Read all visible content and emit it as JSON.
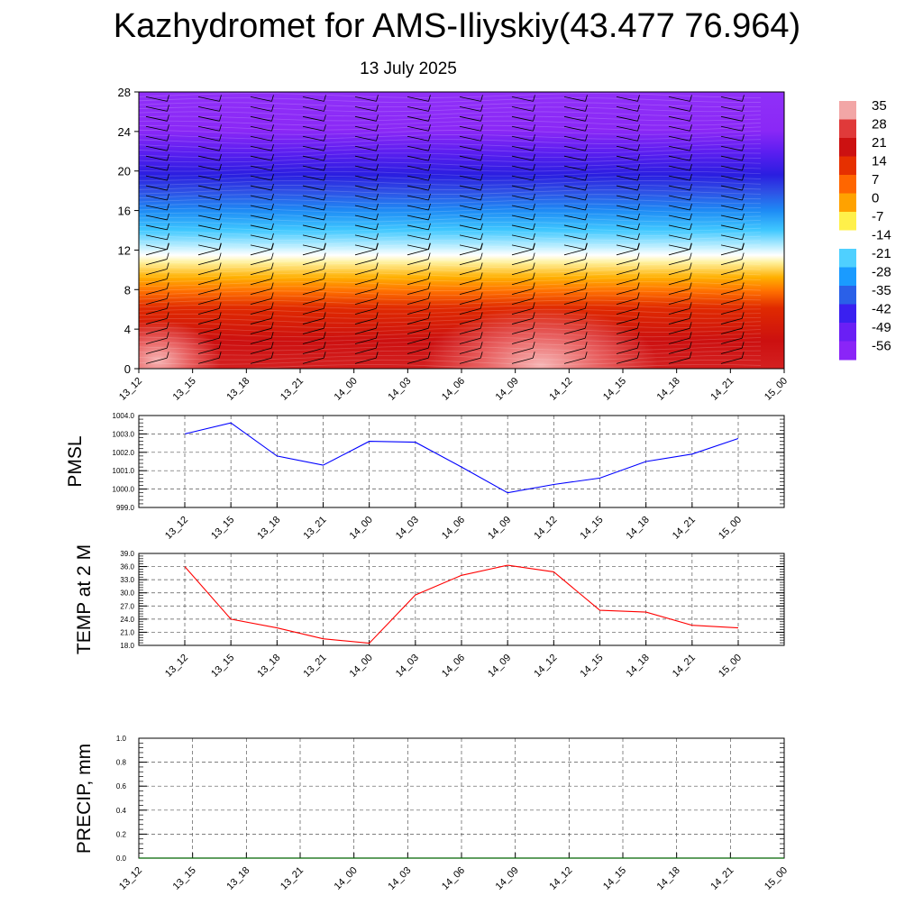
{
  "title": "Kazhydromet for AMS-Iliyskiy(43.477 76.964)",
  "subtitle": "13 July 2025",
  "chart_data": [
    {
      "type": "heatmap",
      "name": "upper-air-cross-section",
      "x_ticks": [
        "13_12",
        "13_15",
        "13_18",
        "13_21",
        "14_00",
        "14_03",
        "14_06",
        "14_09",
        "14_12",
        "14_15",
        "14_18",
        "14_21",
        "15_00"
      ],
      "y_ticks": [
        "0",
        "4",
        "8",
        "12",
        "16",
        "20",
        "24",
        "28"
      ],
      "ylim": [
        0,
        28
      ],
      "colorbar": {
        "labels": [
          "35",
          "28",
          "21",
          "14",
          "7",
          "0",
          "-7",
          "-14",
          "-21",
          "-28",
          "-35",
          "-42",
          "-49",
          "-56"
        ],
        "colors": [
          "#f2a6a6",
          "#e03a3a",
          "#cc1111",
          "#e63000",
          "#ff6600",
          "#ffa200",
          "#fff04a",
          "#ffffff",
          "#4fd0ff",
          "#1a9bff",
          "#2a60e8",
          "#3a20f0",
          "#6a1ff5",
          "#8a25f7"
        ]
      },
      "surface_warm_cores": [
        "13_12",
        "14_09"
      ],
      "wind_barbs": true
    },
    {
      "type": "line",
      "name": "pmsl",
      "ylabel": "PMSL",
      "x": [
        "13_12",
        "13_15",
        "13_18",
        "13_21",
        "14_00",
        "14_03",
        "14_06",
        "14_09",
        "14_12",
        "14_15",
        "14_18",
        "14_21",
        "15_00"
      ],
      "values": [
        1003.0,
        1003.6,
        1001.8,
        1001.3,
        1002.6,
        1002.55,
        1001.2,
        999.8,
        1000.25,
        1000.6,
        1001.5,
        1001.9,
        1002.75
      ],
      "ylim": [
        999.0,
        1004.0
      ],
      "y_ticks": [
        "999.0",
        "1000.0",
        "1001.0",
        "1002.0",
        "1003.0",
        "1004.0"
      ],
      "color": "#0000ff",
      "grid": true
    },
    {
      "type": "line",
      "name": "temp2m",
      "ylabel": "TEMP at 2 M",
      "x": [
        "13_12",
        "13_15",
        "13_18",
        "13_21",
        "14_00",
        "14_03",
        "14_06",
        "14_09",
        "14_12",
        "14_15",
        "14_18",
        "14_21",
        "15_00"
      ],
      "values": [
        36.0,
        24.0,
        22.0,
        19.5,
        18.5,
        29.5,
        34.0,
        36.3,
        34.8,
        26.0,
        25.6,
        22.6,
        22.0
      ],
      "ylim": [
        18.0,
        39.0
      ],
      "y_ticks": [
        "18.0",
        "21.0",
        "24.0",
        "27.0",
        "30.0",
        "33.0",
        "36.0",
        "39.0"
      ],
      "color": "#ff0000",
      "grid": true
    },
    {
      "type": "line",
      "name": "precip",
      "ylabel": "PRECIP, mm",
      "x": [
        "13_12",
        "13_15",
        "13_18",
        "13_21",
        "14_00",
        "14_03",
        "14_06",
        "14_09",
        "14_12",
        "14_15",
        "14_18",
        "14_21",
        "15_00"
      ],
      "values": [
        0,
        0,
        0,
        0,
        0,
        0,
        0,
        0,
        0,
        0,
        0,
        0,
        0
      ],
      "ylim": [
        0.0,
        1.0
      ],
      "y_ticks": [
        "0.0",
        "0.2",
        "0.4",
        "0.6",
        "0.8",
        "1.0"
      ],
      "color": "#006400",
      "grid": true
    }
  ]
}
